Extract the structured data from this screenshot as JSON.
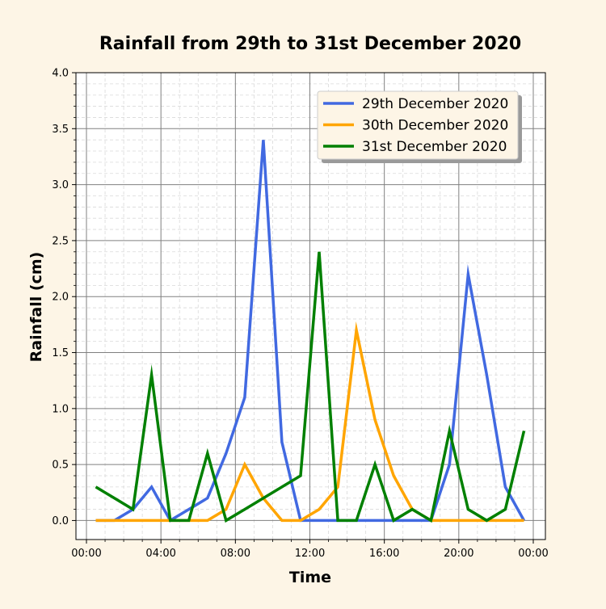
{
  "chart_data": {
    "type": "line",
    "title": "Rainfall from 29th to 31st December 2020",
    "xlabel": "Time",
    "ylabel": "Rainfall (cm)",
    "xlim": [
      0,
      24
    ],
    "ylim": [
      0,
      4.0
    ],
    "x_tick_values": [
      0,
      4,
      8,
      12,
      16,
      20,
      24
    ],
    "x_tick_labels": [
      "00:00",
      "04:00",
      "08:00",
      "12:00",
      "16:00",
      "20:00",
      "00:00"
    ],
    "y_ticks": [
      "0.0",
      "0.5",
      "1.0",
      "1.5",
      "2.0",
      "2.5",
      "3.0",
      "3.5",
      "4.0"
    ],
    "grid": true,
    "legend_position": "top-right",
    "x": [
      0.5,
      1.5,
      2.5,
      3.5,
      4.5,
      5.5,
      6.5,
      7.5,
      8.5,
      9.5,
      10.5,
      11.5,
      12.5,
      13.5,
      14.5,
      15.5,
      16.5,
      17.5,
      18.5,
      19.5,
      20.5,
      21.5,
      22.5,
      23.5
    ],
    "series": [
      {
        "name": "29th December 2020",
        "color": "#4169e1",
        "values": [
          0,
          0,
          0.1,
          0.3,
          0,
          0.1,
          0.2,
          0.6,
          1.1,
          3.4,
          0.7,
          0,
          0,
          0,
          0,
          0,
          0,
          0,
          0,
          0.5,
          2.2,
          1.3,
          0.3,
          0
        ]
      },
      {
        "name": "30th December 2020",
        "color": "#ffa500",
        "values": [
          0,
          0,
          0,
          0,
          0,
          0,
          0,
          0.1,
          0.5,
          0.2,
          0,
          0,
          0.1,
          0.3,
          1.7,
          0.9,
          0.4,
          0.1,
          0,
          0,
          0,
          0,
          0,
          0
        ]
      },
      {
        "name": "31st December 2020",
        "color": "#008000",
        "values": [
          0.3,
          0.2,
          0.1,
          1.3,
          0,
          0,
          0.6,
          0,
          0.1,
          0.2,
          0.3,
          0.4,
          2.4,
          0,
          0,
          0.5,
          0,
          0.1,
          0,
          0.8,
          0.1,
          0,
          0.1,
          0.8
        ]
      }
    ]
  }
}
